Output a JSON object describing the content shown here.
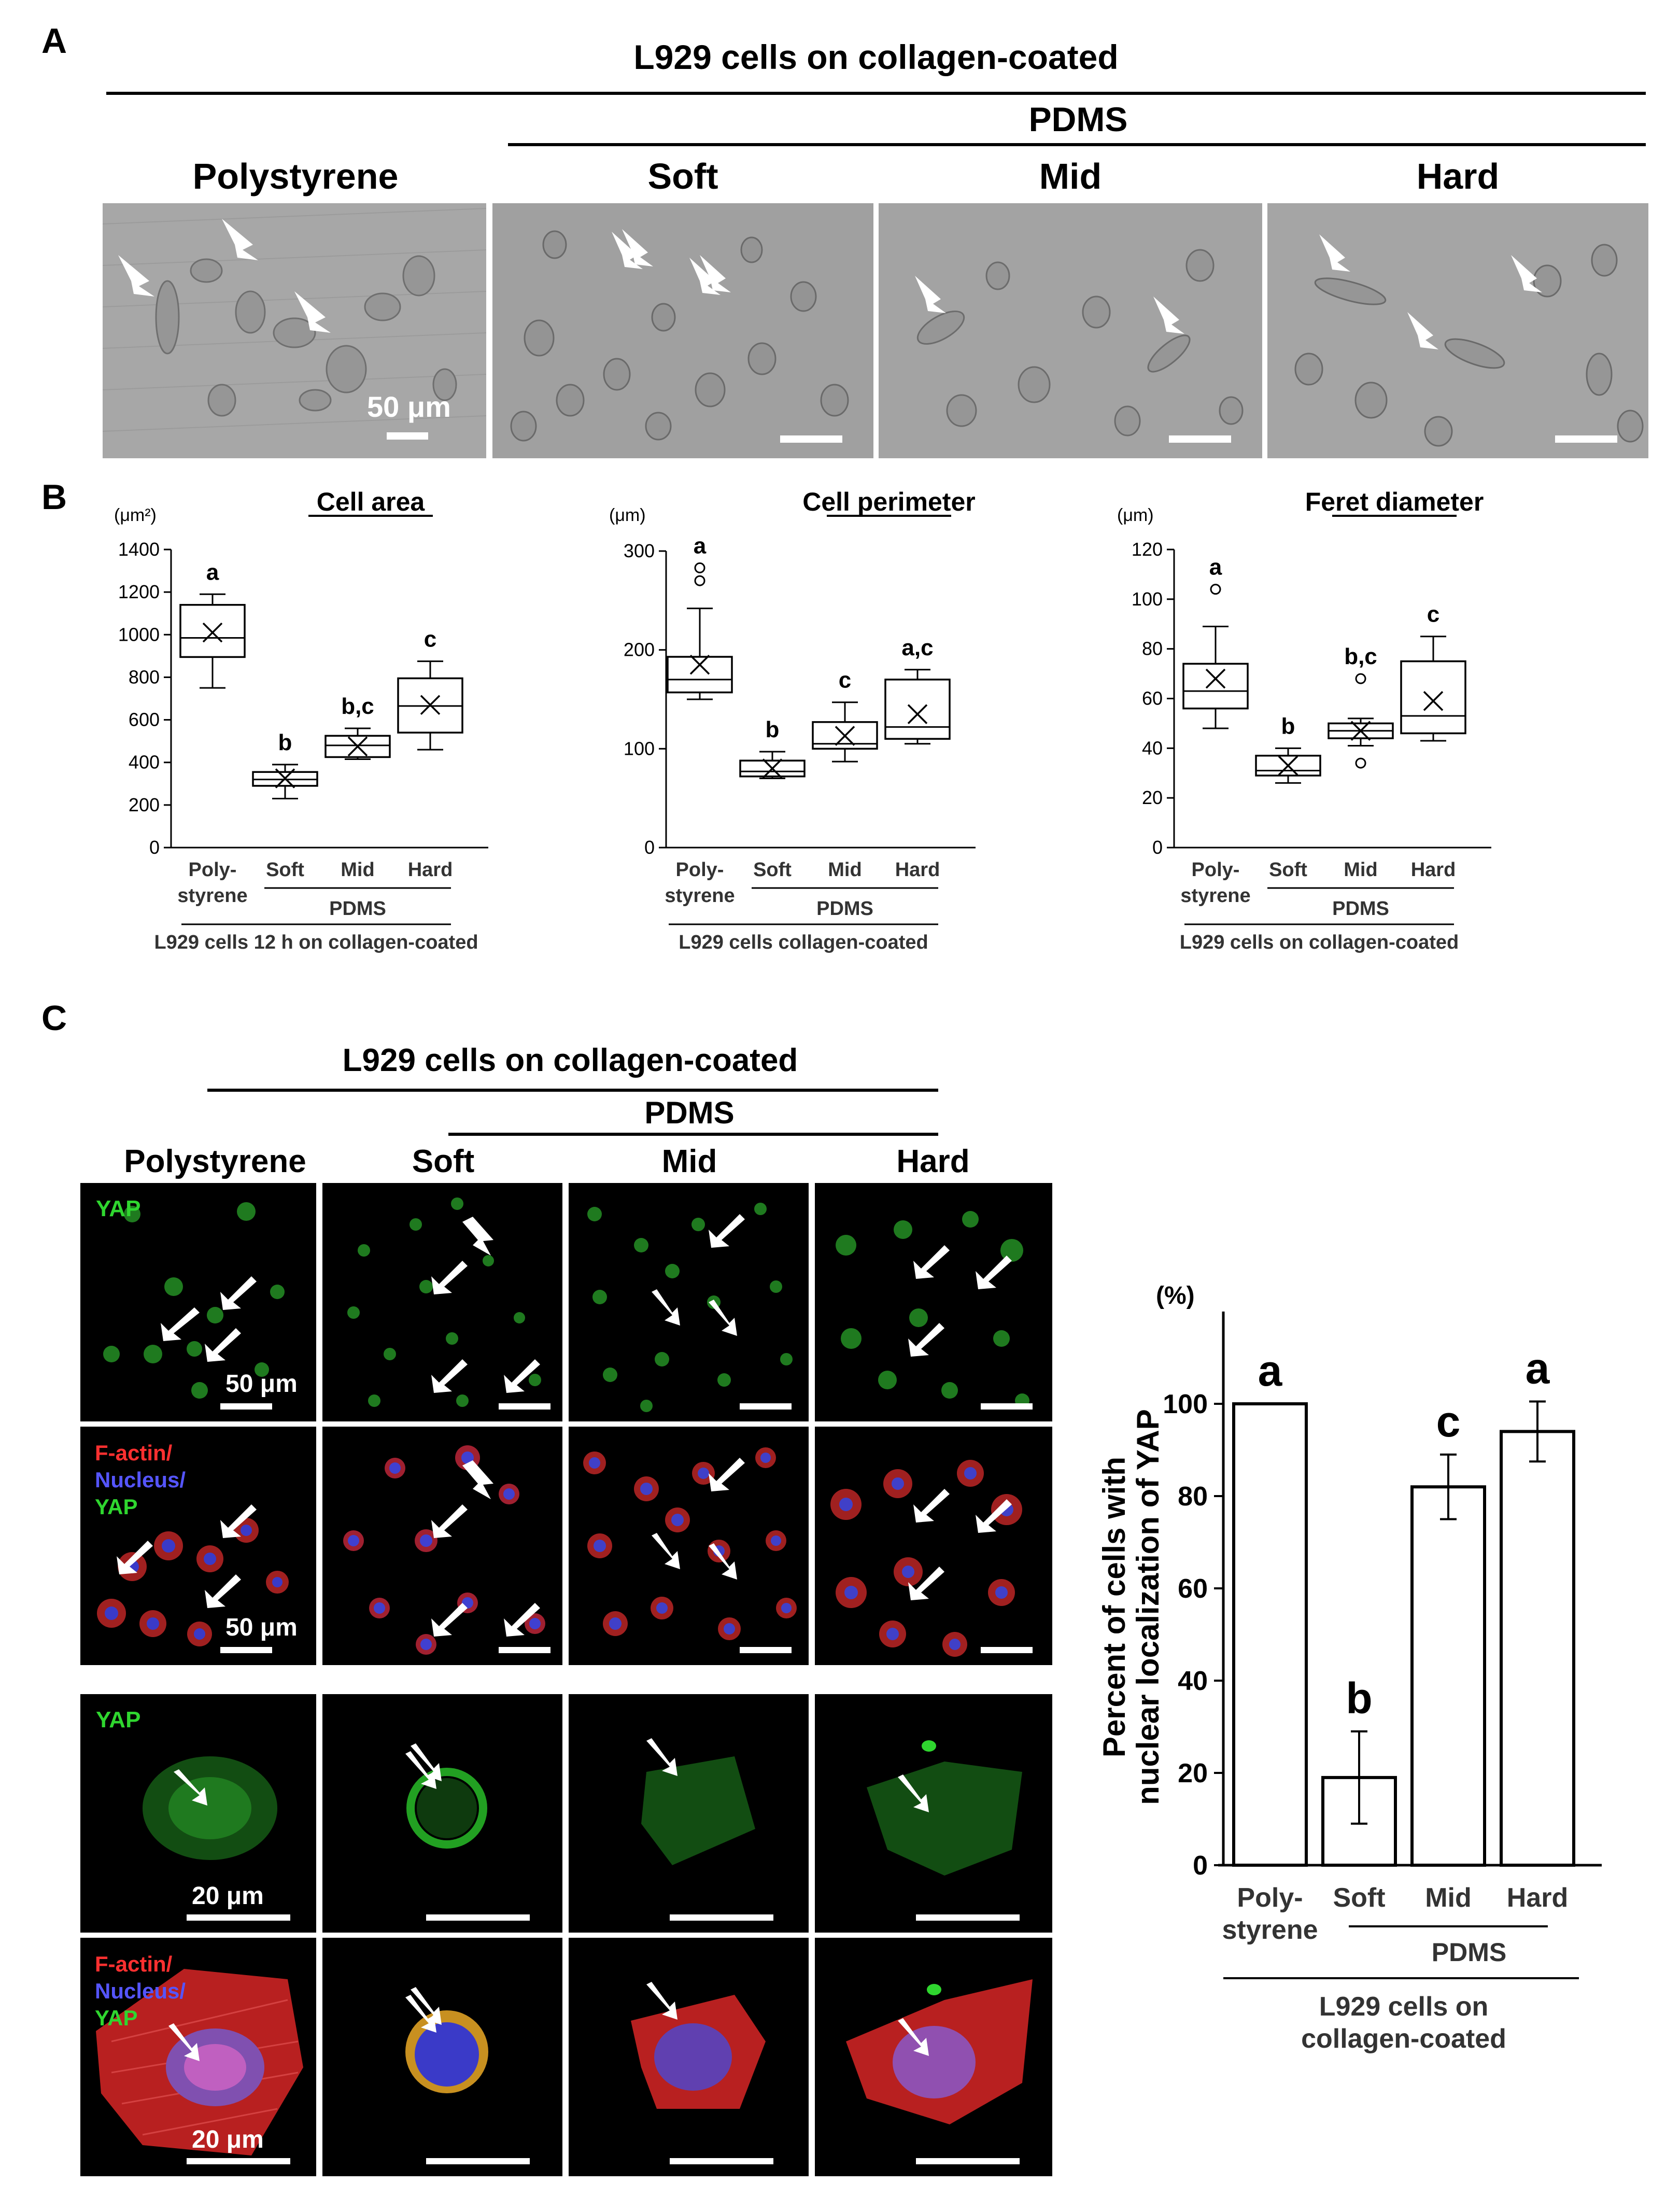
{
  "panels": {
    "a": "A",
    "b": "B",
    "c": "C"
  },
  "panel_a": {
    "header": "L929 cells on collagen-coated",
    "pdms": "PDMS",
    "columns": [
      "Polystyrene",
      "Soft",
      "Mid",
      "Hard"
    ],
    "scale_label": "50 μm"
  },
  "panel_b": {
    "charts": [
      {
        "title": "Cell area",
        "unit": "(μm²)",
        "categories": [
          "Poly-\nstyrene",
          "Soft",
          "Mid",
          "Hard"
        ],
        "pdms": "PDMS",
        "footer": "L929 cells 12 h on collagen-coated"
      },
      {
        "title": "Cell perimeter",
        "unit": "(μm)",
        "categories": [
          "Poly-\nstyrene",
          "Soft",
          "Mid",
          "Hard"
        ],
        "pdms": "PDMS",
        "footer": "L929 cells collagen-coated"
      },
      {
        "title": "Feret diameter",
        "unit": "(μm)",
        "categories": [
          "Poly-\nstyrene",
          "Soft",
          "Mid",
          "Hard"
        ],
        "pdms": "PDMS",
        "footer": "L929 cells on collagen-coated"
      }
    ]
  },
  "panel_c": {
    "header": "L929 cells on collagen-coated",
    "pdms": "PDMS",
    "columns": [
      "Polystyrene",
      "Soft",
      "Mid",
      "Hard"
    ],
    "row_labels": {
      "yap": "YAP",
      "factin": "F-actin/",
      "nucleus": "Nucleus/",
      "yap2": "YAP"
    },
    "scale_50": "50 μm",
    "scale_20": "20 μm",
    "bar_chart": {
      "unit": "(%)",
      "ylabel_line1": "Percent of cells with",
      "ylabel_line2": "nuclear localization of YAP",
      "categories": [
        "Poly-\nstyrene",
        "Soft",
        "Mid",
        "Hard"
      ],
      "pdms": "PDMS",
      "footer_line1": "L929 cells on",
      "footer_line2": "collagen-coated"
    }
  },
  "chart_data": [
    {
      "type": "box",
      "title": "Cell area",
      "ylabel": "(μm²)",
      "ylim": [
        0,
        1400
      ],
      "yticks": [
        0,
        200,
        400,
        600,
        800,
        1000,
        1200,
        1400
      ],
      "categories": [
        "Poly-styrene",
        "Soft",
        "Mid",
        "Hard"
      ],
      "boxes": [
        {
          "min": 750,
          "q1": 895,
          "median": 985,
          "q3": 1140,
          "max": 1190,
          "mean": 1010,
          "outliers": [],
          "letter": "a"
        },
        {
          "min": 230,
          "q1": 290,
          "median": 320,
          "q3": 355,
          "max": 390,
          "mean": 325,
          "outliers": [],
          "letter": "b"
        },
        {
          "min": 415,
          "q1": 425,
          "median": 480,
          "q3": 525,
          "max": 560,
          "mean": 475,
          "outliers": [],
          "letter": "b,c"
        },
        {
          "min": 460,
          "q1": 540,
          "median": 665,
          "q3": 795,
          "max": 875,
          "mean": 670,
          "outliers": [],
          "letter": "c"
        }
      ]
    },
    {
      "type": "box",
      "title": "Cell perimeter",
      "ylabel": "(μm)",
      "ylim": [
        0,
        300
      ],
      "yticks": [
        0,
        100,
        200,
        300
      ],
      "categories": [
        "Poly-styrene",
        "Soft",
        "Mid",
        "Hard"
      ],
      "boxes": [
        {
          "min": 150,
          "q1": 157,
          "median": 170,
          "q3": 193,
          "max": 242,
          "mean": 185,
          "outliers": [
            270,
            283
          ],
          "letter": "a"
        },
        {
          "min": 70,
          "q1": 72,
          "median": 77,
          "q3": 88,
          "max": 97,
          "mean": 80,
          "outliers": [],
          "letter": "b"
        },
        {
          "min": 87,
          "q1": 100,
          "median": 105,
          "q3": 127,
          "max": 147,
          "mean": 113,
          "outliers": [],
          "letter": "c"
        },
        {
          "min": 105,
          "q1": 110,
          "median": 122,
          "q3": 170,
          "max": 180,
          "mean": 135,
          "outliers": [],
          "letter": "a,c"
        }
      ]
    },
    {
      "type": "box",
      "title": "Feret diameter",
      "ylabel": "(μm)",
      "ylim": [
        0,
        120
      ],
      "yticks": [
        0,
        20,
        40,
        60,
        80,
        100,
        120
      ],
      "categories": [
        "Poly-styrene",
        "Soft",
        "Mid",
        "Hard"
      ],
      "boxes": [
        {
          "min": 48,
          "q1": 56,
          "median": 63,
          "q3": 74,
          "max": 89,
          "mean": 68,
          "outliers": [
            104
          ],
          "letter": "a"
        },
        {
          "min": 26,
          "q1": 29,
          "median": 31,
          "q3": 37,
          "max": 40,
          "mean": 33,
          "outliers": [],
          "letter": "b"
        },
        {
          "min": 41,
          "q1": 44,
          "median": 47,
          "q3": 50,
          "max": 52,
          "mean": 47,
          "outliers": [
            68,
            34
          ],
          "letter": "b,c"
        },
        {
          "min": 43,
          "q1": 46,
          "median": 53,
          "q3": 75,
          "max": 85,
          "mean": 59,
          "outliers": [],
          "letter": "c"
        }
      ]
    },
    {
      "type": "bar",
      "ylabel": "Percent of cells with nuclear localization of YAP",
      "unit": "(%)",
      "ylim": [
        0,
        120
      ],
      "yticks": [
        0,
        20,
        40,
        60,
        80,
        100
      ],
      "categories": [
        "Poly-styrene",
        "Soft",
        "Mid",
        "Hard"
      ],
      "values": [
        100,
        19,
        82,
        94
      ],
      "errors": [
        0,
        10,
        7,
        6.5
      ],
      "letters": [
        "a",
        "b",
        "c",
        "a"
      ]
    }
  ]
}
